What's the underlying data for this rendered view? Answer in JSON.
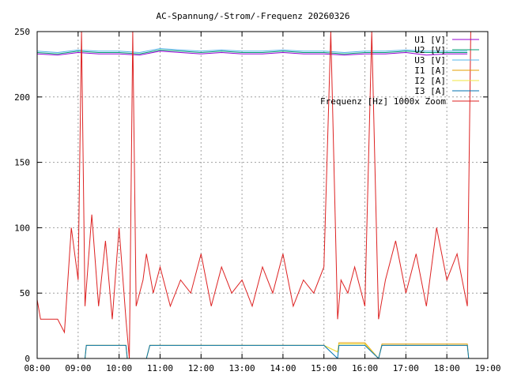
{
  "chart_data": {
    "type": "line",
    "title": "AC-Spannung/-Strom/-Frequenz 20260326",
    "xlabel": "",
    "ylabel": "",
    "xlim": [
      "08:00",
      "19:00"
    ],
    "ylim": [
      0,
      250
    ],
    "x_ticks": [
      "08:00",
      "09:00",
      "10:00",
      "11:00",
      "12:00",
      "13:00",
      "14:00",
      "15:00",
      "16:00",
      "17:00",
      "18:00",
      "19:00"
    ],
    "y_ticks": [
      0,
      50,
      100,
      150,
      200,
      250
    ],
    "grid": true,
    "legend_position": "top-right",
    "series": [
      {
        "name": "U1 [V]",
        "color": "#9400d3",
        "x": [
          "08:00",
          "08:30",
          "09:00",
          "09:30",
          "10:00",
          "10:30",
          "11:00",
          "11:30",
          "12:00",
          "12:30",
          "13:00",
          "13:30",
          "14:00",
          "14:30",
          "15:00",
          "15:30",
          "16:00",
          "16:30",
          "17:00",
          "17:30",
          "18:00",
          "18:30"
        ],
        "y": [
          233,
          232,
          234,
          233,
          233,
          232,
          235,
          234,
          233,
          234,
          233,
          233,
          234,
          233,
          233,
          232,
          233,
          233,
          234,
          232,
          233,
          233
        ]
      },
      {
        "name": "U2 [V]",
        "color": "#009e73",
        "x": [
          "08:00",
          "08:30",
          "09:00",
          "09:30",
          "10:00",
          "10:30",
          "11:00",
          "11:30",
          "12:00",
          "12:30",
          "13:00",
          "13:30",
          "14:00",
          "14:30",
          "15:00",
          "15:30",
          "16:00",
          "16:30",
          "17:00",
          "17:30",
          "18:00",
          "18:30"
        ],
        "y": [
          234,
          233,
          235,
          234,
          234,
          233,
          236,
          235,
          234,
          235,
          234,
          234,
          235,
          234,
          234,
          233,
          234,
          234,
          235,
          234,
          234,
          234
        ]
      },
      {
        "name": "U3 [V]",
        "color": "#56b4e9",
        "x": [
          "08:00",
          "08:30",
          "09:00",
          "09:30",
          "10:00",
          "10:30",
          "11:00",
          "11:30",
          "12:00",
          "12:30",
          "13:00",
          "13:30",
          "14:00",
          "14:30",
          "15:00",
          "15:30",
          "16:00",
          "16:30",
          "17:00",
          "17:30",
          "18:00",
          "18:30"
        ],
        "y": [
          235,
          234,
          236,
          235,
          235,
          234,
          237,
          236,
          235,
          236,
          235,
          235,
          236,
          235,
          235,
          234,
          235,
          235,
          236,
          235,
          235,
          235
        ]
      },
      {
        "name": "I1 [A]",
        "color": "#e69f00",
        "x": [
          "08:00",
          "09:10",
          "09:12",
          "10:10",
          "10:12",
          "10:40",
          "10:45",
          "15:00",
          "15:20",
          "15:22",
          "16:00",
          "16:20",
          "16:25",
          "18:30",
          "18:32",
          "19:00"
        ],
        "y": [
          0,
          0,
          10,
          10,
          0,
          0,
          10,
          10,
          5,
          12,
          12,
          0,
          11,
          11,
          0,
          0
        ]
      },
      {
        "name": "I2 [A]",
        "color": "#f0e442",
        "x": [
          "08:00",
          "09:10",
          "09:12",
          "10:10",
          "10:12",
          "10:40",
          "10:45",
          "15:00",
          "15:20",
          "15:22",
          "16:00",
          "16:20",
          "16:25",
          "18:30",
          "18:32",
          "19:00"
        ],
        "y": [
          0,
          0,
          10,
          10,
          0,
          0,
          10,
          10,
          5,
          11,
          11,
          0,
          10,
          10,
          0,
          0
        ]
      },
      {
        "name": "I3 [A]",
        "color": "#0072b2",
        "x": [
          "08:00",
          "09:10",
          "09:12",
          "10:10",
          "10:12",
          "10:40",
          "10:45",
          "15:00",
          "15:20",
          "15:22",
          "16:00",
          "16:20",
          "16:25",
          "18:30",
          "18:32",
          "19:00"
        ],
        "y": [
          0,
          0,
          10,
          10,
          0,
          0,
          10,
          10,
          0,
          10,
          10,
          0,
          10,
          10,
          0,
          0
        ]
      },
      {
        "name": "Frequenz [Hz] 1000x Zoom",
        "color": "#dd2222",
        "x": [
          "08:00",
          "08:05",
          "08:15",
          "08:30",
          "08:40",
          "08:50",
          "09:00",
          "09:05",
          "09:10",
          "09:20",
          "09:30",
          "09:40",
          "09:50",
          "10:00",
          "10:10",
          "10:15",
          "10:20",
          "10:25",
          "10:35",
          "10:40",
          "10:50",
          "11:00",
          "11:15",
          "11:30",
          "11:45",
          "12:00",
          "12:15",
          "12:30",
          "12:45",
          "13:00",
          "13:15",
          "13:30",
          "13:45",
          "14:00",
          "14:15",
          "14:30",
          "14:45",
          "15:00",
          "15:10",
          "15:20",
          "15:25",
          "15:35",
          "15:45",
          "16:00",
          "16:10",
          "16:20",
          "16:30",
          "16:45",
          "17:00",
          "17:15",
          "17:30",
          "17:45",
          "18:00",
          "18:15",
          "18:30",
          "18:35"
        ],
        "y": [
          45,
          30,
          30,
          30,
          20,
          100,
          60,
          250,
          40,
          110,
          40,
          90,
          30,
          100,
          30,
          0,
          250,
          40,
          60,
          80,
          50,
          70,
          40,
          60,
          50,
          80,
          40,
          70,
          50,
          60,
          40,
          70,
          50,
          80,
          40,
          60,
          50,
          70,
          250,
          30,
          60,
          50,
          70,
          40,
          250,
          30,
          60,
          90,
          50,
          80,
          40,
          100,
          60,
          80,
          40,
          250
        ]
      }
    ]
  }
}
